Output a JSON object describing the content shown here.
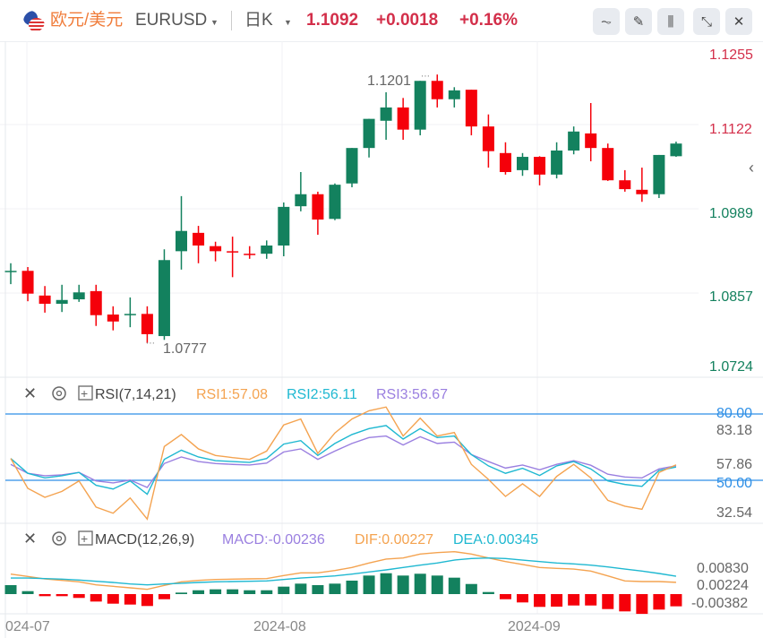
{
  "header": {
    "pair_cn": "欧元/美元",
    "pair_code": "EURUSD",
    "period": "日K",
    "last_price": "1.1092",
    "change": "+0.0018",
    "change_pct": "+0.16%",
    "icons": [
      "indicator-icon",
      "draw-icon",
      "candle-type-icon",
      "collapse-icon",
      "close-icon"
    ]
  },
  "colors": {
    "up": "#13815e",
    "down": "#f5000a",
    "header_red": "#d32f4a",
    "rsi1": "#f4a350",
    "rsi2": "#1fb8d1",
    "rsi3": "#9a7fe0",
    "level_line": "#2e8fe6",
    "dif": "#f4a350",
    "dea": "#1fb8d1"
  },
  "price_axis": {
    "labels": [
      "1.1255",
      "1.1122",
      "1.0989",
      "1.0857",
      "1.0724"
    ]
  },
  "annotations": {
    "high": "1.1201",
    "low": "1.0777"
  },
  "dates": [
    "024-07",
    "2024-08",
    "2024-09"
  ],
  "rsi": {
    "title": "RSI(7,14,21)",
    "rsi1_label": "RSI1:57.08",
    "rsi2_label": "RSI2:56.11",
    "rsi3_label": "RSI3:56.67",
    "axis_labels": {
      "upper": "80.00",
      "max": "83.18",
      "last": "57.86",
      "lower": "50.00",
      "min": "32.54"
    },
    "levels": [
      80,
      50
    ]
  },
  "macd": {
    "title": "MACD(12,26,9)",
    "macd_label": "MACD:-0.00236",
    "dif_label": "DIF:0.00227",
    "dea_label": "DEA:0.00345",
    "axis_labels": {
      "max": "0.00830",
      "mid": "0.00224",
      "min": "-0.00382"
    }
  },
  "chart_data": {
    "type": "candlestick",
    "candles": [
      [
        1.089,
        1.0891,
        1.0903,
        1.087
      ],
      [
        1.0891,
        1.0855,
        1.0897,
        1.0843
      ],
      [
        1.0852,
        1.0839,
        1.0867,
        1.0825
      ],
      [
        1.0839,
        1.0845,
        1.0869,
        1.0826
      ],
      [
        1.0846,
        1.0857,
        1.0869,
        1.0842
      ],
      [
        1.0859,
        1.0821,
        1.0869,
        1.0804
      ],
      [
        1.0822,
        1.0811,
        1.0835,
        1.0797
      ],
      [
        1.0822,
        1.0823,
        1.0849,
        1.0802
      ],
      [
        1.0823,
        1.0791,
        1.0835,
        1.0777
      ],
      [
        1.0788,
        1.0908,
        1.0925,
        1.0782
      ],
      [
        1.0922,
        1.0954,
        1.1009,
        1.0893
      ],
      [
        1.0951,
        1.0931,
        1.0962,
        1.0903
      ],
      [
        1.093,
        1.0922,
        1.0937,
        1.0906
      ],
      [
        1.0922,
        1.092,
        1.0945,
        1.0881
      ],
      [
        1.0918,
        1.0917,
        1.093,
        1.091
      ],
      [
        1.0918,
        1.0931,
        1.0939,
        1.091
      ],
      [
        1.0931,
        1.0992,
        1.0999,
        1.0914
      ],
      [
        1.0993,
        1.1012,
        1.1047,
        1.0985
      ],
      [
        1.1012,
        1.0972,
        1.1016,
        1.0948
      ],
      [
        1.0973,
        1.1027,
        1.1029,
        1.0971
      ],
      [
        1.1029,
        1.1085,
        1.1085,
        1.1023
      ],
      [
        1.1085,
        1.1131,
        1.1131,
        1.107
      ],
      [
        1.1128,
        1.1149,
        1.1173,
        1.1098
      ],
      [
        1.1149,
        1.1114,
        1.1164,
        1.1098
      ],
      [
        1.1114,
        1.1191,
        1.1191,
        1.1105
      ],
      [
        1.1191,
        1.1162,
        1.1201,
        1.1149
      ],
      [
        1.1162,
        1.1176,
        1.1181,
        1.1149
      ],
      [
        1.1177,
        1.1119,
        1.1177,
        1.1105
      ],
      [
        1.1119,
        1.108,
        1.1138,
        1.1054
      ],
      [
        1.1077,
        1.1047,
        1.1094,
        1.1043
      ],
      [
        1.105,
        1.1071,
        1.1077,
        1.1041
      ],
      [
        1.1071,
        1.1043,
        1.1072,
        1.1026
      ],
      [
        1.1043,
        1.1081,
        1.1094,
        1.1037
      ],
      [
        1.1081,
        1.1111,
        1.1119,
        1.1075
      ],
      [
        1.1108,
        1.1085,
        1.1156,
        1.1064
      ],
      [
        1.1085,
        1.1034,
        1.1092,
        1.1033
      ],
      [
        1.1034,
        1.102,
        1.105,
        1.1016
      ],
      [
        1.1019,
        1.1012,
        1.1054,
        1.1
      ],
      [
        1.1012,
        1.1074,
        1.1074,
        1.1006
      ],
      [
        1.1072,
        1.1092,
        1.1095,
        1.1071
      ]
    ],
    "candle_fields": [
      "open",
      "close",
      "high",
      "low"
    ],
    "rsi1": [
      60.0,
      46.3,
      42.2,
      44.9,
      49.7,
      37.7,
      34.9,
      41.9,
      32.2,
      65.5,
      71.0,
      64.4,
      61.4,
      60.4,
      59.6,
      63.4,
      75.4,
      78.1,
      62.3,
      71.7,
      78.1,
      81.9,
      83.6,
      70.3,
      78.5,
      70.3,
      71.9,
      57.3,
      50.4,
      42.6,
      48.4,
      42.6,
      51.8,
      57.3,
      51.1,
      40.8,
      38.1,
      36.7,
      53.6,
      57.08
    ],
    "rsi2": [
      60.0,
      53.2,
      51.1,
      52.1,
      53.6,
      47.7,
      46.0,
      49.7,
      43.6,
      59.6,
      63.8,
      60.7,
      59.0,
      58.6,
      58.2,
      60.0,
      66.6,
      68.2,
      61.4,
      66.9,
      71.0,
      73.7,
      75.1,
      68.9,
      73.7,
      69.6,
      70.3,
      61.8,
      56.6,
      53.2,
      55.5,
      52.2,
      56.6,
      58.6,
      55.2,
      49.7,
      48.1,
      47.2,
      54.5,
      56.11
    ],
    "rsi3": [
      57.3,
      53.2,
      52.1,
      52.5,
      53.6,
      49.7,
      48.8,
      50.1,
      46.7,
      57.7,
      60.7,
      58.6,
      57.7,
      57.3,
      57.0,
      57.9,
      63.0,
      64.4,
      59.6,
      63.4,
      66.9,
      69.6,
      70.3,
      66.2,
      70.0,
      66.9,
      67.5,
      61.8,
      58.6,
      55.6,
      57.0,
      54.8,
      57.3,
      59.0,
      56.9,
      52.8,
      51.5,
      51.1,
      55.2,
      56.67
    ],
    "macd_hist": [
      0.00173,
      0.00057,
      -0.0004,
      -0.0004,
      -0.00074,
      -0.00144,
      -0.00185,
      -0.00202,
      -0.0023,
      -0.00099,
      0.00029,
      0.00074,
      0.00092,
      0.00092,
      0.00074,
      0.00074,
      0.00144,
      0.00202,
      0.00173,
      0.00202,
      0.0026,
      0.00358,
      0.00403,
      0.00358,
      0.00393,
      0.00358,
      0.00317,
      0.00195,
      0.0004,
      -0.00099,
      -0.00161,
      -0.00247,
      -0.00242,
      -0.0022,
      -0.0022,
      -0.00289,
      -0.00334,
      -0.00382,
      -0.00299,
      -0.00236
    ],
    "dif": [
      0.00386,
      0.0034,
      0.00294,
      0.00265,
      0.00236,
      0.00179,
      0.0015,
      0.00121,
      0.00092,
      0.00167,
      0.00236,
      0.00265,
      0.00283,
      0.00288,
      0.00294,
      0.003,
      0.00357,
      0.00409,
      0.00409,
      0.00456,
      0.00513,
      0.006,
      0.00675,
      0.00698,
      0.00773,
      0.00802,
      0.00819,
      0.00773,
      0.00698,
      0.00629,
      0.00571,
      0.00513,
      0.00496,
      0.00484,
      0.00444,
      0.00352,
      0.00254,
      0.00242,
      0.00242,
      0.00227
    ],
    "dea": [
      0.00311,
      0.00311,
      0.003,
      0.00288,
      0.00271,
      0.00248,
      0.00225,
      0.00196,
      0.00179,
      0.00196,
      0.00208,
      0.00225,
      0.00236,
      0.00242,
      0.00248,
      0.00254,
      0.00283,
      0.00311,
      0.00329,
      0.00352,
      0.00386,
      0.00427,
      0.00467,
      0.00513,
      0.00559,
      0.006,
      0.00657,
      0.00687,
      0.00698,
      0.00687,
      0.00657,
      0.00629,
      0.006,
      0.00583,
      0.00559,
      0.00524,
      0.00484,
      0.00444,
      0.00398,
      0.00345
    ],
    "x_ticks": [
      "024-07",
      "2024-08",
      "2024-09"
    ],
    "y_ticks": [
      1.1255,
      1.1122,
      1.0989,
      1.0857,
      1.0724
    ],
    "grid": true
  }
}
